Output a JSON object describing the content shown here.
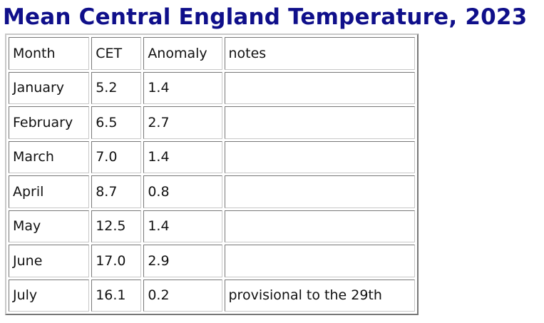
{
  "title": "Mean Central England Temperature, 2023",
  "table": {
    "header": [
      "Month",
      "CET",
      "Anomaly",
      "notes"
    ],
    "rows": [
      [
        "January",
        "5.2",
        "1.4"
      ],
      [
        "February",
        "6.5",
        "2.7"
      ],
      [
        "March",
        "7.0",
        "1.4"
      ],
      [
        "April",
        "8.7",
        "0.8"
      ],
      [
        "May",
        "12.5",
        "1.4"
      ],
      [
        "June",
        "17.0",
        "2.9"
      ],
      [
        "July",
        "16.1",
        "0.2",
        "provisional to the 29th"
      ]
    ]
  }
}
